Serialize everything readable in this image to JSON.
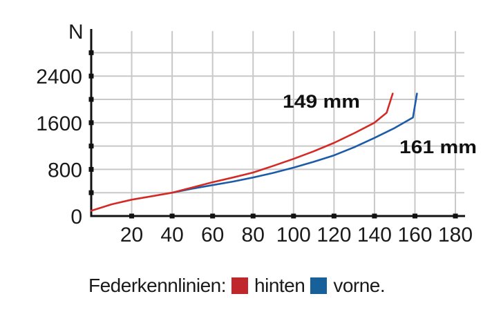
{
  "chart_data": {
    "type": "line",
    "title": "",
    "xlabel": "",
    "ylabel": "N",
    "x_ticks": [
      20,
      40,
      60,
      80,
      100,
      120,
      140,
      160,
      180
    ],
    "y_ticks": [
      0,
      800,
      1600,
      2400
    ],
    "xlim": [
      0,
      180
    ],
    "ylim": [
      0,
      3200
    ],
    "grid": true,
    "legend_position": "bottom",
    "legend_title": "Federkennlinien:",
    "series": [
      {
        "name": "hinten",
        "color": "#d42a25",
        "x": [
          0,
          10,
          20,
          30,
          40,
          50,
          60,
          70,
          80,
          90,
          100,
          110,
          120,
          130,
          140,
          146,
          149
        ],
        "y": [
          90,
          200,
          280,
          340,
          400,
          490,
          580,
          660,
          745,
          860,
          980,
          1110,
          1255,
          1420,
          1600,
          1770,
          2100
        ]
      },
      {
        "name": "vorne",
        "color": "#1c5ba8",
        "x": [
          40,
          50,
          60,
          70,
          80,
          90,
          100,
          110,
          120,
          130,
          140,
          150,
          159,
          161
        ],
        "y": [
          400,
          470,
          530,
          590,
          660,
          740,
          830,
          930,
          1040,
          1180,
          1340,
          1510,
          1690,
          2100
        ]
      }
    ],
    "annotations": [
      {
        "text": "149 mm",
        "series": "hinten"
      },
      {
        "text": "161 mm",
        "series": "vorne"
      }
    ]
  },
  "axis": {
    "y_unit": "N",
    "y_labels": [
      "2400",
      "1600",
      "800",
      "0"
    ],
    "x_labels": [
      "20",
      "40",
      "60",
      "80",
      "100",
      "120",
      "140",
      "160",
      "180"
    ]
  },
  "annotations": {
    "rear": "149 mm",
    "front": "161 mm"
  },
  "legend": {
    "title": "Federkennlinien:",
    "items": [
      {
        "label": "hinten",
        "color": "#c0272d"
      },
      {
        "label": "vorne.",
        "color": "#17609a"
      }
    ]
  }
}
